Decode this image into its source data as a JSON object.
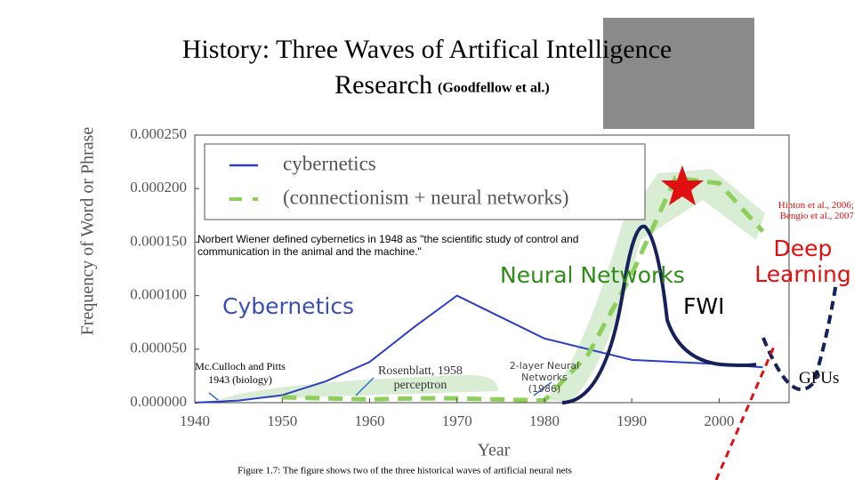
{
  "chart_data": {
    "type": "line",
    "title": "History: Three Waves of Artifical Intelligence",
    "title_line2": "Research",
    "subtitle": "(Goodfellow et al.)",
    "x_label": "Year",
    "y_label": "Frequency of Word or Phrase",
    "caption": "Figure 1.7: The figure shows two of the three historical waves of artificial neural nets",
    "x": [
      1940,
      1945,
      1950,
      1955,
      1960,
      1965,
      1970,
      1975,
      1980,
      1985,
      1990,
      1995,
      2000,
      2005
    ],
    "series": [
      {
        "name": "cybernetics",
        "color": "#2b3fc4",
        "dashed": false,
        "values": [
          0,
          2e-06,
          7e-06,
          2e-05,
          3.8e-05,
          7e-05,
          0.0001,
          8e-05,
          6e-05,
          5e-05,
          4e-05,
          3.8e-05,
          3.6e-05,
          3.3e-05
        ]
      },
      {
        "name": "(connectionism + neural networks)",
        "color": "#8ccf5a",
        "dashed": true,
        "values": [
          null,
          null,
          5e-06,
          4e-06,
          3e-06,
          4e-06,
          4e-06,
          3e-06,
          2e-06,
          4.5e-05,
          0.00012,
          0.00021,
          0.000205,
          0.00016
        ]
      }
    ],
    "xlim": [
      1940,
      2008
    ],
    "ylim": [
      0,
      0.00025
    ],
    "xticks": [
      1940,
      1950,
      1960,
      1970,
      1980,
      1990,
      2000
    ],
    "yticks": [
      {
        "value": 0,
        "label": "0.000000"
      },
      {
        "value": 5e-05,
        "label": "0.000050"
      },
      {
        "value": 0.0001,
        "label": "0.000100"
      },
      {
        "value": 0.00015,
        "label": "0.000150"
      },
      {
        "value": 0.0002,
        "label": "0.000200"
      },
      {
        "value": 0.00025,
        "label": "0.000250"
      }
    ],
    "grid": false,
    "annotations": [
      "Norbert Wiener defined cybernetics in 1948 as \"the scientific study of control and communication in the animal and the machine.\"",
      "Cybernetics",
      "Neural Networks",
      "FWI",
      "Deep Learning",
      "Hinton et al., 2006; Bengio et al., 2007",
      "Mc.Culloch and Pitts 1943 (biology)",
      "Rosenblatt, 1958 perceptron",
      "2-layer Neural Networks (1986)",
      "GPUs"
    ]
  }
}
